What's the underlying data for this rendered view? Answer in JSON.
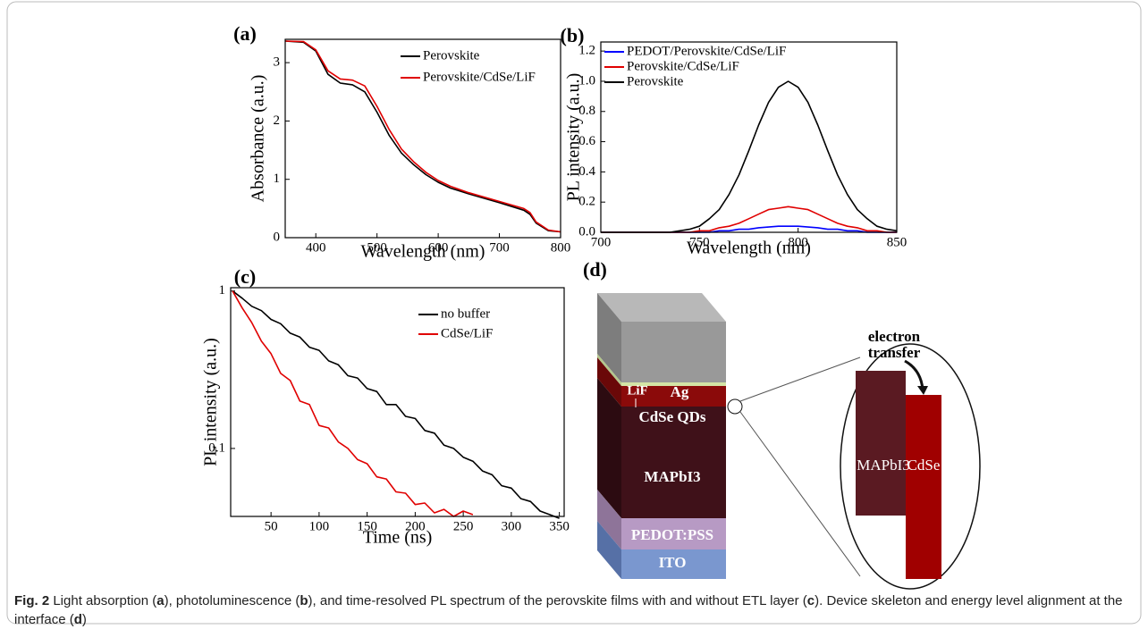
{
  "chart_data": [
    {
      "type": "line",
      "label": "(a)",
      "y_label": "Absorbance (a.u.)",
      "x_label": "Wavelength (nm)",
      "x": [
        350,
        380,
        400,
        420,
        440,
        460,
        480,
        500,
        520,
        540,
        560,
        580,
        600,
        620,
        650,
        700,
        740,
        750,
        760,
        780,
        800
      ],
      "series": [
        {
          "name": "Perovskite",
          "color": "#000000",
          "values": [
            3.37,
            3.35,
            3.2,
            2.8,
            2.65,
            2.62,
            2.5,
            2.15,
            1.75,
            1.45,
            1.25,
            1.08,
            0.95,
            0.85,
            0.75,
            0.6,
            0.47,
            0.4,
            0.25,
            0.12,
            0.1
          ]
        },
        {
          "name": "Perovskite/CdSe/LiF",
          "color": "#e00000",
          "values": [
            3.37,
            3.36,
            3.22,
            2.86,
            2.72,
            2.7,
            2.6,
            2.25,
            1.85,
            1.52,
            1.3,
            1.12,
            0.98,
            0.88,
            0.77,
            0.62,
            0.5,
            0.43,
            0.27,
            0.13,
            0.1
          ]
        }
      ],
      "xlim": [
        350,
        800
      ],
      "xticks": [
        400,
        500,
        600,
        700,
        800
      ],
      "ylim": [
        0,
        3.4
      ],
      "yticks": [
        0,
        1,
        2,
        3
      ],
      "log_y": false
    },
    {
      "type": "line",
      "label": "(b)",
      "y_label": "PL intensity (a.u.)",
      "x_label": "Wavelength (nm)",
      "x": [
        700,
        705,
        710,
        715,
        720,
        725,
        730,
        735,
        740,
        745,
        750,
        755,
        760,
        765,
        770,
        775,
        780,
        785,
        790,
        795,
        800,
        805,
        810,
        815,
        820,
        825,
        830,
        835,
        840,
        845,
        850
      ],
      "series": [
        {
          "name": "PEDOT/Perovskite/CdSe/LiF",
          "color": "#0000ff",
          "values": [
            0,
            0,
            0,
            0,
            0,
            0,
            0,
            0,
            0,
            0,
            0,
            0,
            0.01,
            0.01,
            0.02,
            0.02,
            0.03,
            0.035,
            0.04,
            0.04,
            0.04,
            0.035,
            0.03,
            0.02,
            0.02,
            0.01,
            0.01,
            0,
            0,
            0,
            0
          ]
        },
        {
          "name": "Perovskite/CdSe/LiF",
          "color": "#e00000",
          "values": [
            0,
            0,
            0,
            0,
            0,
            0,
            0,
            0,
            0,
            0,
            0.01,
            0.01,
            0.03,
            0.04,
            0.06,
            0.09,
            0.12,
            0.15,
            0.16,
            0.17,
            0.16,
            0.15,
            0.12,
            0.09,
            0.06,
            0.04,
            0.03,
            0.01,
            0.01,
            0,
            0
          ]
        },
        {
          "name": "Perovskite",
          "color": "#000000",
          "values": [
            0,
            0,
            0,
            0,
            0,
            0,
            0,
            0,
            0.01,
            0.02,
            0.04,
            0.09,
            0.15,
            0.25,
            0.38,
            0.54,
            0.71,
            0.86,
            0.96,
            1.0,
            0.96,
            0.86,
            0.71,
            0.54,
            0.38,
            0.25,
            0.15,
            0.09,
            0.04,
            0.02,
            0.01
          ]
        }
      ],
      "xlim": [
        700,
        850
      ],
      "xticks": [
        700,
        750,
        800,
        850
      ],
      "ylim": [
        0,
        1.26
      ],
      "yticks": [
        {
          "value": 0,
          "label": "0.0"
        },
        {
          "value": 0.2,
          "label": "0.2"
        },
        {
          "value": 0.4,
          "label": "0.4"
        },
        {
          "value": 0.6,
          "label": "0.6"
        },
        {
          "value": 0.8,
          "label": "0.8"
        },
        {
          "value": 1,
          "label": "1.0"
        },
        {
          "value": 1.2,
          "label": "1.2"
        }
      ],
      "log_y": false
    },
    {
      "type": "line",
      "label": "(c)",
      "y_label": "PL intensity (a.u.)",
      "x_label": "Time (ns)",
      "x": [
        10,
        20,
        30,
        40,
        50,
        60,
        70,
        80,
        90,
        100,
        110,
        120,
        130,
        140,
        150,
        160,
        170,
        180,
        190,
        200,
        210,
        220,
        230,
        240,
        250,
        260,
        270,
        280,
        290,
        300,
        310,
        320,
        330,
        340,
        350
      ],
      "series": [
        {
          "name": "no buffer",
          "color": "#000000",
          "values": [
            1,
            0.9,
            0.8,
            0.75,
            0.66,
            0.62,
            0.54,
            0.51,
            0.44,
            0.42,
            0.36,
            0.34,
            0.29,
            0.28,
            0.24,
            0.23,
            0.19,
            0.19,
            0.16,
            0.155,
            0.13,
            0.125,
            0.105,
            0.1,
            0.088,
            0.083,
            0.072,
            0.068,
            0.058,
            0.056,
            0.048,
            0.046,
            0.04,
            0.038,
            0.036
          ]
        },
        {
          "name": "CdSe/LiF",
          "color": "#e00000",
          "values": [
            1,
            0.78,
            0.63,
            0.48,
            0.4,
            0.3,
            0.27,
            0.2,
            0.19,
            0.14,
            0.135,
            0.11,
            0.1,
            0.085,
            0.08,
            0.066,
            0.064,
            0.053,
            0.052,
            0.044,
            0.045,
            0.039,
            0.041,
            0.037,
            0.04,
            0.038,
            null,
            null,
            null,
            null,
            null,
            null,
            null,
            null,
            null
          ]
        }
      ],
      "xlim": [
        8,
        355
      ],
      "xticks": [
        50,
        100,
        150,
        200,
        250,
        300,
        350
      ],
      "ylim": [
        0.037,
        1.05
      ],
      "yticks": [
        1,
        0.1
      ],
      "log_y": true
    }
  ],
  "diagram": {
    "label": "(d)",
    "layers": {
      "lif": "LiF",
      "ag": "Ag",
      "cdse": "CdSe QDs",
      "mapbi3": "MAPbI3",
      "pedot": "PEDOT:PSS",
      "ito": "ITO"
    },
    "zoom": {
      "arrow_text": [
        "electron",
        "transfer"
      ],
      "left_block": "MAPbI3",
      "right_block": "CdSe"
    }
  },
  "caption": {
    "label": "Fig. 2",
    "runs": [
      " Light absorption (",
      "a",
      "), photoluminescence (",
      "b",
      "), and time-resolved PL spectrum of the perovskite films with and without ETL layer (",
      "c",
      "). Device skeleton and energy level alignment at the interface (",
      "d",
      ")"
    ]
  }
}
